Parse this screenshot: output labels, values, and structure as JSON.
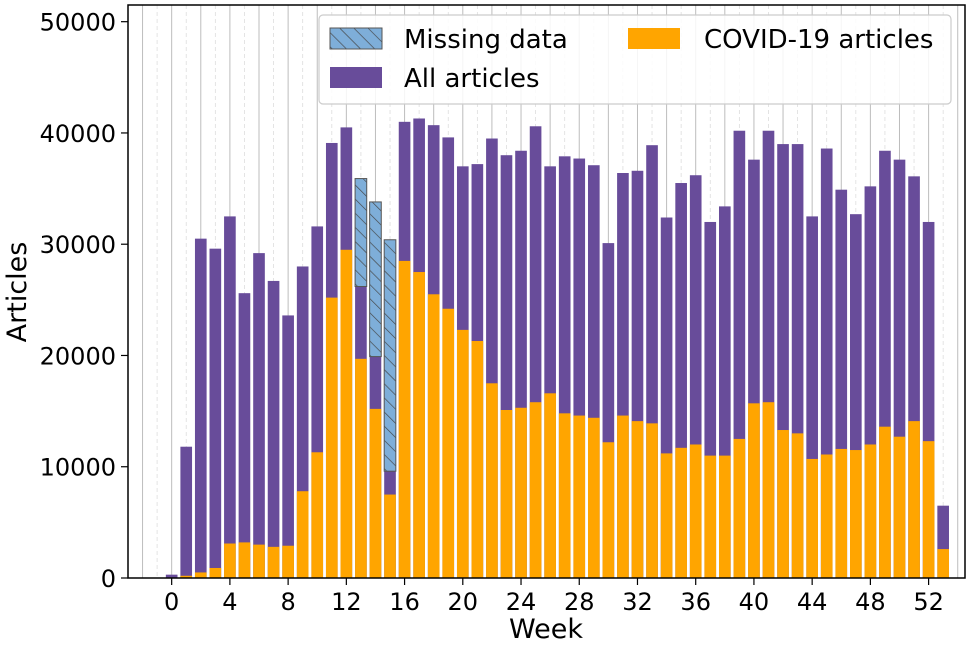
{
  "chart_data": {
    "type": "bar",
    "xlabel": "Week",
    "ylabel": "Articles",
    "xlim": [
      -3,
      54.5
    ],
    "ylim": [
      0,
      51500
    ],
    "xticks": [
      0,
      4,
      8,
      12,
      16,
      20,
      24,
      28,
      32,
      36,
      40,
      44,
      48,
      52
    ],
    "xtick_labels": [
      "0",
      "4",
      "8",
      "12",
      "16",
      "20",
      "24",
      "28",
      "32",
      "36",
      "40",
      "44",
      "48",
      "52"
    ],
    "yticks": [
      0,
      10000,
      20000,
      30000,
      40000,
      50000
    ],
    "ytick_labels": [
      "0",
      "10000",
      "20000",
      "30000",
      "40000",
      "50000"
    ],
    "grid": "vertical",
    "legend": {
      "position": "top-right",
      "entries": [
        {
          "label": "Missing data",
          "color": "#7eaed9",
          "hatch": true
        },
        {
          "label": "COVID-19 articles",
          "color": "#ffa500"
        },
        {
          "label": "All articles",
          "color": "#684c9a"
        }
      ]
    },
    "weeks": [
      0,
      1,
      2,
      3,
      4,
      5,
      6,
      7,
      8,
      9,
      10,
      11,
      12,
      13,
      14,
      15,
      16,
      17,
      18,
      19,
      20,
      21,
      22,
      23,
      24,
      25,
      26,
      27,
      28,
      29,
      30,
      31,
      32,
      33,
      34,
      35,
      36,
      37,
      38,
      39,
      40,
      41,
      42,
      43,
      44,
      45,
      46,
      47,
      48,
      49,
      50,
      51,
      52,
      53
    ],
    "series": [
      {
        "name": "All articles",
        "color": "#684c9a",
        "values": [
          300,
          11800,
          30500,
          29600,
          32500,
          25600,
          29200,
          26700,
          23600,
          28000,
          31600,
          39100,
          40500,
          26200,
          19900,
          9600,
          41000,
          41300,
          40700,
          39600,
          37000,
          37200,
          39500,
          38000,
          38400,
          40600,
          37000,
          37900,
          37700,
          37100,
          30100,
          36400,
          36600,
          38900,
          32400,
          35500,
          36200,
          32000,
          33400,
          40200,
          37600,
          40200,
          39000,
          39000,
          32500,
          38600,
          34900,
          32700,
          35200,
          38400,
          37600,
          36100,
          32000,
          6500
        ]
      },
      {
        "name": "COVID-19 articles",
        "color": "#ffa500",
        "values": [
          0,
          200,
          500,
          900,
          3100,
          3200,
          3000,
          2800,
          2900,
          7800,
          11300,
          25200,
          29500,
          19700,
          15200,
          7500,
          28500,
          27500,
          25500,
          24200,
          22300,
          21300,
          17500,
          15100,
          15300,
          15800,
          16600,
          14800,
          14600,
          14400,
          12200,
          14600,
          14100,
          13900,
          11200,
          11700,
          12000,
          11000,
          11000,
          12500,
          15700,
          15800,
          13300,
          13000,
          10700,
          11100,
          11600,
          11500,
          12000,
          13600,
          12700,
          14100,
          12300,
          2600
        ]
      },
      {
        "name": "Missing data",
        "color": "#7eaed9",
        "hatch": true,
        "weeks": [
          13,
          14,
          15
        ],
        "bottoms": [
          26200,
          19900,
          9600
        ],
        "tops": [
          35900,
          33800,
          30400
        ]
      }
    ]
  }
}
